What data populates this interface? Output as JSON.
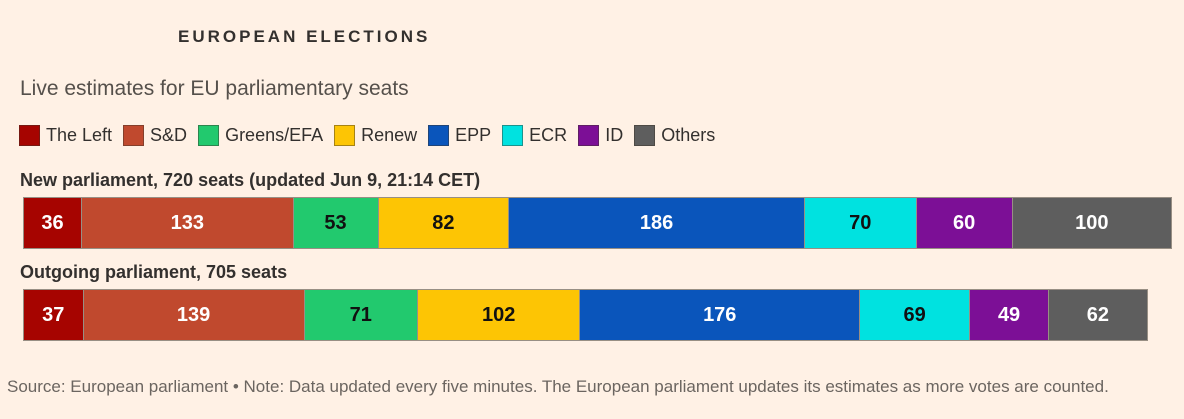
{
  "page": {
    "kicker": "EUROPEAN ELECTIONS",
    "subtitle": "Live estimates for EU parliamentary seats",
    "source_note": "Source: European parliament • Note: Data updated every five minutes. The European parliament updates its estimates as more votes are counted."
  },
  "colors": {
    "background": "#fff1e5",
    "border": "#988f84",
    "text_dark": "#33302e",
    "text_medium": "#55504b",
    "text_source": "#6b6560"
  },
  "legend": [
    {
      "label": "The Left",
      "color": "#a60400",
      "value_text_color": "#ffffff"
    },
    {
      "label": "S&D",
      "color": "#c0492e",
      "value_text_color": "#ffffff"
    },
    {
      "label": "Greens/EFA",
      "color": "#22c96e",
      "value_text_color": "#111111"
    },
    {
      "label": "Renew",
      "color": "#fdc504",
      "value_text_color": "#111111"
    },
    {
      "label": "EPP",
      "color": "#0a55bb",
      "value_text_color": "#ffffff"
    },
    {
      "label": "ECR",
      "color": "#00e2e0",
      "value_text_color": "#111111"
    },
    {
      "label": "ID",
      "color": "#7c0f96",
      "value_text_color": "#ffffff"
    },
    {
      "label": "Others",
      "color": "#5e5e5e",
      "value_text_color": "#ffffff"
    }
  ],
  "chart_data": {
    "type": "bar",
    "stacked": true,
    "orientation": "horizontal",
    "unit": "seats",
    "title": "Live estimates for EU parliamentary seats",
    "categories": [
      "The Left",
      "S&D",
      "Greens/EFA",
      "Renew",
      "EPP",
      "ECR",
      "ID",
      "Others"
    ],
    "legend_position": "top",
    "series": [
      {
        "label": "New parliament, 720 seats (updated Jun 9, 21:14 CET)",
        "total_seats": 720,
        "values": [
          36,
          133,
          53,
          82,
          186,
          70,
          60,
          100
        ]
      },
      {
        "label": "Outgoing parliament, 705 seats",
        "total_seats": 705,
        "values": [
          37,
          139,
          71,
          102,
          176,
          69,
          49,
          62
        ]
      }
    ]
  }
}
